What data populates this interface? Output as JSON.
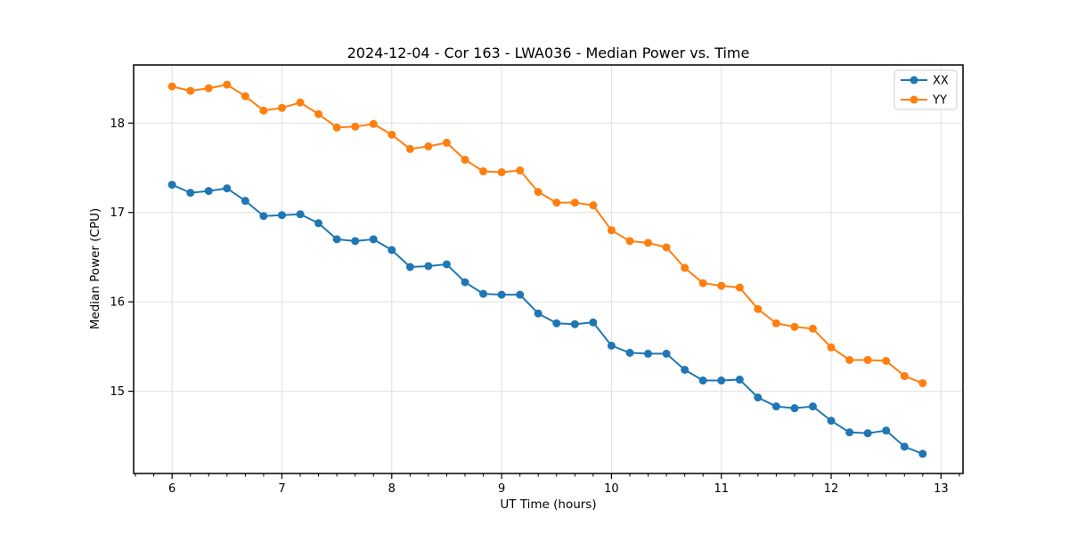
{
  "figure": {
    "background": "#ffffff",
    "text_color": "#000000"
  },
  "chart_data": {
    "type": "line",
    "title": "2024-12-04 - Cor 163 - LWA036 - Median Power vs. Time",
    "xlabel": "UT Time (hours)",
    "ylabel": "Median Power (CPU)",
    "xlim": [
      5.65,
      13.2
    ],
    "ylim": [
      14.08,
      18.65
    ],
    "xticks": [
      6,
      7,
      8,
      9,
      10,
      11,
      12,
      13
    ],
    "yticks": [
      15,
      16,
      17,
      18
    ],
    "minor_xtick_interval": 0.16667,
    "grid": true,
    "grid_color": "#e0e0e0",
    "spine_color": "#000000",
    "legend_position": "upper right",
    "x": [
      6.0,
      6.167,
      6.333,
      6.5,
      6.667,
      6.833,
      7.0,
      7.167,
      7.333,
      7.5,
      7.667,
      7.833,
      8.0,
      8.167,
      8.333,
      8.5,
      8.667,
      8.833,
      9.0,
      9.167,
      9.333,
      9.5,
      9.667,
      9.833,
      10.0,
      10.167,
      10.333,
      10.5,
      10.667,
      10.833,
      11.0,
      11.167,
      11.333,
      11.5,
      11.667,
      11.833,
      12.0,
      12.167,
      12.333,
      12.5,
      12.667,
      12.833
    ],
    "series": [
      {
        "name": "XX",
        "color": "#1f77b4",
        "values": [
          17.31,
          17.22,
          17.24,
          17.27,
          17.13,
          16.96,
          16.97,
          16.98,
          16.88,
          16.7,
          16.68,
          16.7,
          16.58,
          16.39,
          16.4,
          16.42,
          16.22,
          16.09,
          16.08,
          16.08,
          15.87,
          15.76,
          15.75,
          15.77,
          15.51,
          15.43,
          15.42,
          15.42,
          15.24,
          15.12,
          15.12,
          15.13,
          14.93,
          14.83,
          14.81,
          14.83,
          14.67,
          14.54,
          14.53,
          14.56,
          14.38,
          14.3
        ]
      },
      {
        "name": "YY",
        "color": "#ff7f0e",
        "values": [
          18.41,
          18.36,
          18.39,
          18.43,
          18.3,
          18.14,
          18.17,
          18.23,
          18.1,
          17.95,
          17.96,
          17.99,
          17.87,
          17.71,
          17.74,
          17.78,
          17.59,
          17.46,
          17.45,
          17.47,
          17.23,
          17.11,
          17.11,
          17.08,
          16.8,
          16.68,
          16.66,
          16.61,
          16.38,
          16.21,
          16.18,
          16.16,
          15.92,
          15.76,
          15.72,
          15.7,
          15.49,
          15.35,
          15.35,
          15.34,
          15.17,
          15.09
        ]
      }
    ]
  }
}
